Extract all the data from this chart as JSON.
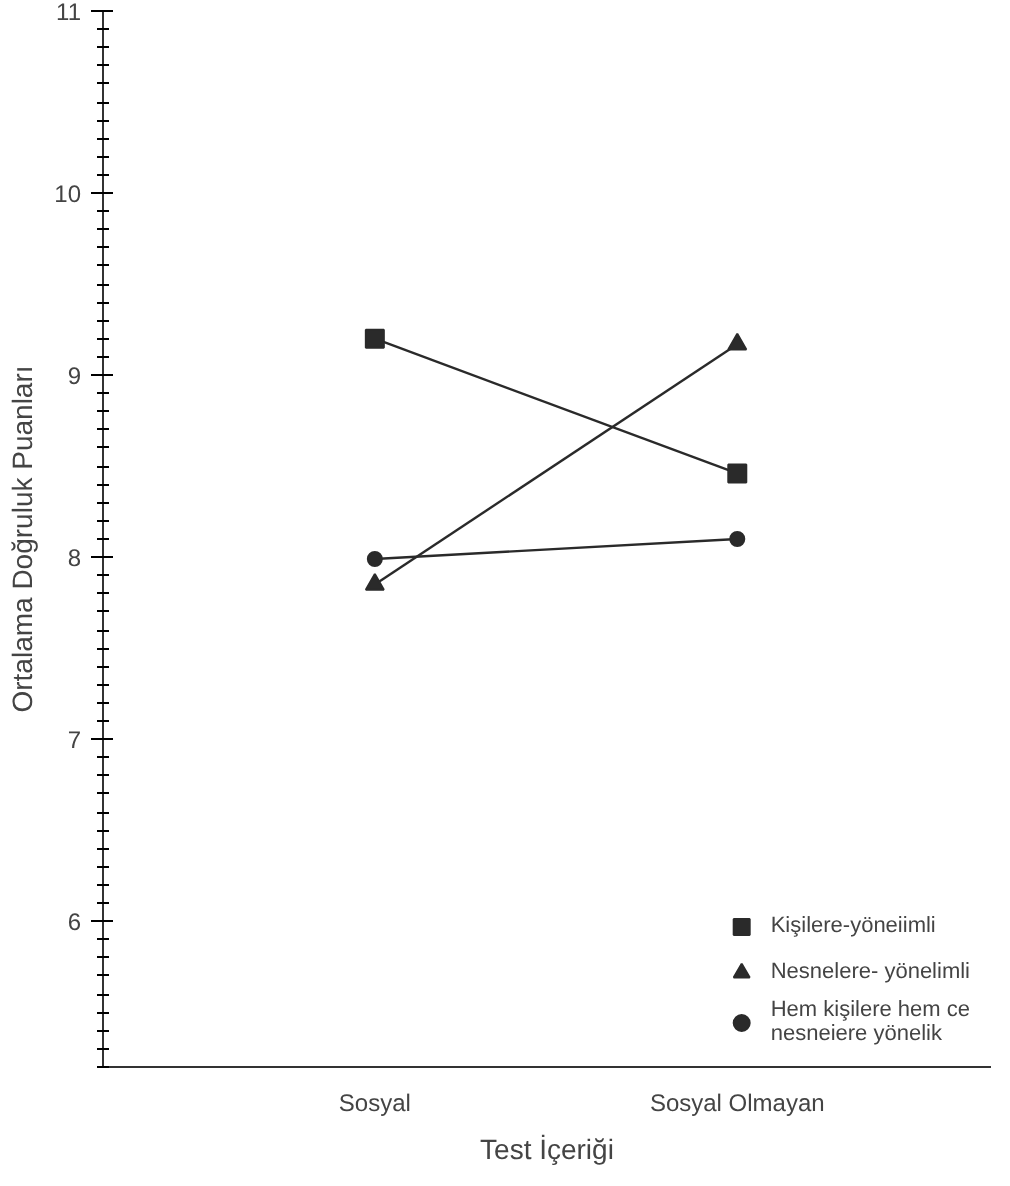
{
  "chart_data": {
    "type": "line",
    "xlabel": "Test İçeriği",
    "ylabel": "Ortalama Doğruluk Puanları",
    "categories": [
      "Sosyal",
      "Sosyal Olmayan"
    ],
    "series": [
      {
        "name": "Kişilere-yöneiimli",
        "color": "#2a2a2a",
        "values": [
          9.2,
          8.46
        ],
        "marker": "square"
      },
      {
        "name": "Nesnelere- yönelimli",
        "color": "#2a2a2a",
        "values": [
          7.85,
          9.17
        ],
        "marker": "triangle"
      },
      {
        "name": "Hem kişilere hem ce\nnesneiere yönelik",
        "color": "#2a2a2a",
        "values": [
          7.99,
          8.1
        ],
        "marker": "circle"
      }
    ],
    "ylim": [
      5.2,
      11
    ],
    "yticks": [
      6,
      7,
      8,
      9,
      10,
      11
    ],
    "grid": false,
    "legend": "bottom right",
    "line_style": "solid"
  }
}
